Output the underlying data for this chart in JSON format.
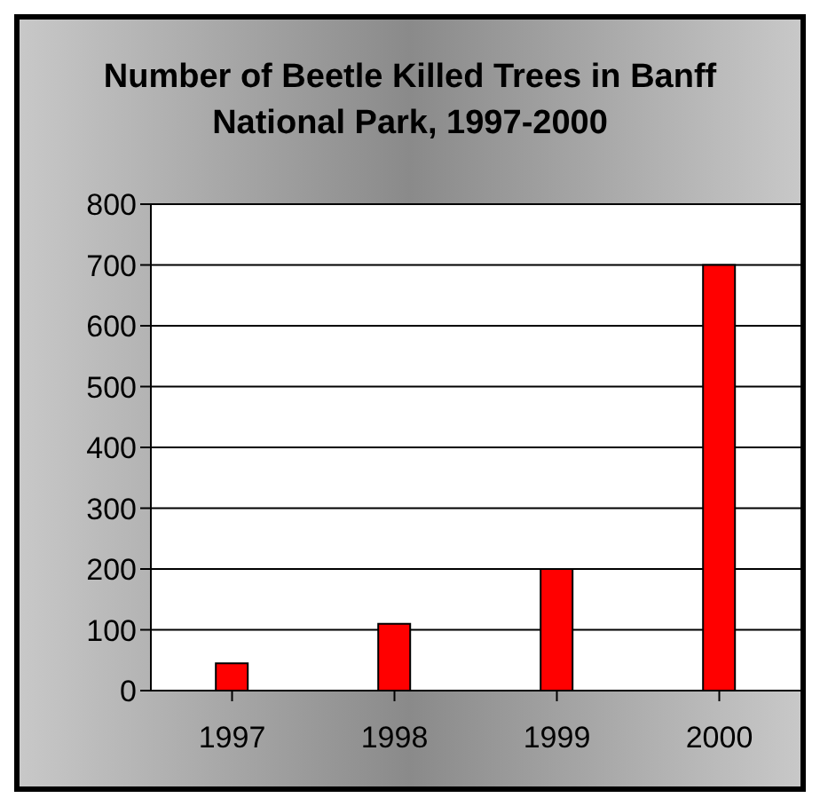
{
  "chart_data": {
    "type": "bar",
    "title": "Number of Beetle Killed Trees in Banff National Park, 1997-2000",
    "categories": [
      "1997",
      "1998",
      "1999",
      "2000"
    ],
    "values": [
      45,
      110,
      200,
      700
    ],
    "color": "#ff0000",
    "ylim": [
      0,
      800
    ],
    "yticks": [
      0,
      100,
      200,
      300,
      400,
      500,
      600,
      700,
      800
    ],
    "grid": "y"
  }
}
